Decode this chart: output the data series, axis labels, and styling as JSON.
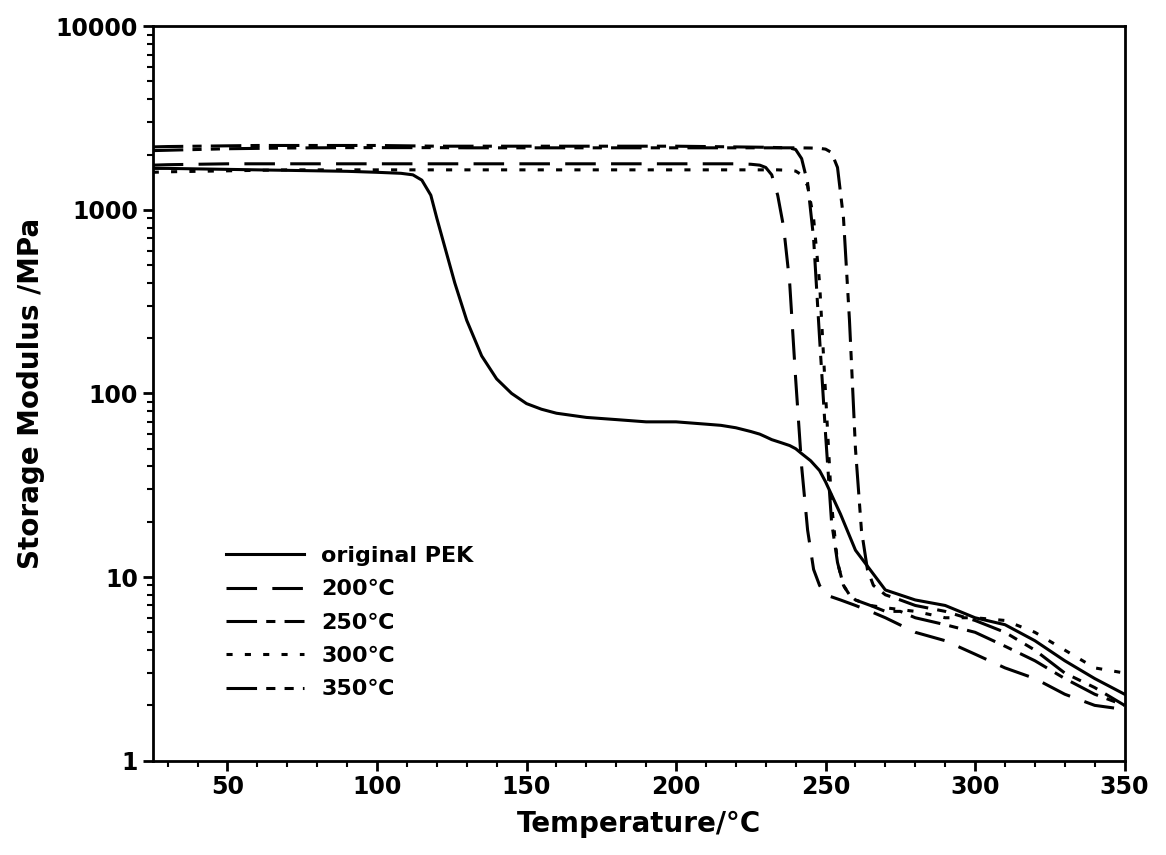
{
  "title": "",
  "xlabel": "Temperature/°C",
  "ylabel": "Storage Modulus /MPa",
  "xlim": [
    25,
    350
  ],
  "ylim_log": [
    1,
    10000
  ],
  "xticks": [
    50,
    100,
    150,
    200,
    250,
    300,
    350
  ],
  "yticks_log": [
    1,
    10,
    100,
    1000,
    10000
  ],
  "legend_labels": [
    "original PEK",
    "200℃",
    "250℃",
    "300℃",
    "350℃"
  ],
  "background_color": "#ffffff",
  "series": {
    "original_PEK": {
      "x": [
        25,
        30,
        40,
        50,
        60,
        70,
        80,
        90,
        100,
        108,
        112,
        115,
        118,
        120,
        123,
        126,
        130,
        135,
        140,
        145,
        150,
        155,
        160,
        170,
        180,
        190,
        200,
        210,
        215,
        220,
        225,
        228,
        230,
        232,
        235,
        238,
        240,
        242,
        245,
        248,
        250,
        255,
        260,
        270,
        280,
        290,
        300,
        310,
        320,
        330,
        340,
        350
      ],
      "y": [
        1680,
        1680,
        1670,
        1660,
        1650,
        1640,
        1630,
        1620,
        1600,
        1580,
        1550,
        1450,
        1200,
        900,
        600,
        400,
        250,
        160,
        120,
        100,
        88,
        82,
        78,
        74,
        72,
        70,
        70,
        68,
        67,
        65,
        62,
        60,
        58,
        56,
        54,
        52,
        50,
        47,
        43,
        38,
        33,
        22,
        14,
        8.5,
        7.5,
        7.0,
        6.0,
        5.5,
        4.5,
        3.5,
        2.8,
        2.3
      ]
    },
    "200C": {
      "x": [
        25,
        30,
        40,
        50,
        60,
        70,
        80,
        90,
        100,
        110,
        120,
        130,
        140,
        150,
        160,
        170,
        180,
        190,
        200,
        210,
        220,
        225,
        228,
        230,
        232,
        234,
        236,
        238,
        240,
        242,
        244,
        246,
        248,
        250,
        255,
        260,
        265,
        270,
        280,
        290,
        300,
        310,
        320,
        330,
        340,
        350
      ],
      "y": [
        1750,
        1760,
        1770,
        1780,
        1780,
        1780,
        1780,
        1780,
        1780,
        1780,
        1780,
        1780,
        1780,
        1780,
        1780,
        1780,
        1780,
        1780,
        1780,
        1780,
        1780,
        1770,
        1750,
        1700,
        1550,
        1200,
        800,
        400,
        120,
        40,
        18,
        11,
        9,
        8,
        7.5,
        7.0,
        6.5,
        6.0,
        5.0,
        4.5,
        3.8,
        3.2,
        2.8,
        2.3,
        2.0,
        1.9
      ]
    },
    "250C": {
      "x": [
        25,
        30,
        40,
        50,
        60,
        70,
        80,
        90,
        100,
        110,
        120,
        130,
        140,
        150,
        160,
        170,
        180,
        190,
        200,
        210,
        220,
        230,
        235,
        238,
        240,
        242,
        244,
        246,
        248,
        250,
        252,
        254,
        256,
        258,
        260,
        265,
        270,
        275,
        280,
        290,
        300,
        310,
        320,
        330,
        340,
        350
      ],
      "y": [
        2200,
        2210,
        2220,
        2230,
        2240,
        2240,
        2240,
        2240,
        2240,
        2230,
        2220,
        2220,
        2220,
        2220,
        2220,
        2220,
        2220,
        2220,
        2220,
        2210,
        2200,
        2190,
        2180,
        2170,
        2130,
        1900,
        1400,
        700,
        200,
        60,
        20,
        12,
        9,
        8.0,
        7.5,
        7.0,
        6.5,
        6.5,
        6.0,
        5.5,
        5.0,
        4.2,
        3.5,
        2.8,
        2.3,
        2.0
      ]
    },
    "300C": {
      "x": [
        25,
        30,
        40,
        50,
        60,
        70,
        80,
        90,
        100,
        110,
        120,
        130,
        140,
        150,
        160,
        170,
        180,
        190,
        200,
        210,
        215,
        220,
        225,
        228,
        230,
        232,
        234,
        236,
        238,
        240,
        242,
        244,
        246,
        248,
        250,
        252,
        254,
        256,
        258,
        260,
        265,
        270,
        280,
        290,
        300,
        310,
        320,
        330,
        340,
        350
      ],
      "y": [
        1600,
        1610,
        1620,
        1630,
        1640,
        1650,
        1650,
        1650,
        1650,
        1650,
        1650,
        1650,
        1650,
        1650,
        1650,
        1650,
        1650,
        1650,
        1650,
        1650,
        1650,
        1650,
        1650,
        1650,
        1650,
        1650,
        1650,
        1645,
        1640,
        1625,
        1550,
        1350,
        900,
        400,
        100,
        25,
        12,
        9,
        8,
        7.5,
        7.0,
        6.8,
        6.5,
        6.0,
        6.0,
        5.8,
        5.0,
        4.0,
        3.2,
        3.0
      ]
    },
    "350C": {
      "x": [
        25,
        30,
        40,
        50,
        60,
        70,
        80,
        90,
        100,
        110,
        120,
        130,
        140,
        150,
        160,
        170,
        180,
        190,
        200,
        210,
        220,
        230,
        240,
        245,
        248,
        250,
        252,
        254,
        256,
        258,
        260,
        262,
        264,
        266,
        268,
        270,
        275,
        280,
        290,
        300,
        310,
        320,
        330,
        340,
        350
      ],
      "y": [
        2100,
        2110,
        2130,
        2150,
        2160,
        2170,
        2175,
        2180,
        2180,
        2180,
        2180,
        2175,
        2175,
        2175,
        2175,
        2175,
        2175,
        2175,
        2175,
        2175,
        2175,
        2175,
        2175,
        2170,
        2160,
        2140,
        2050,
        1700,
        900,
        250,
        50,
        18,
        11,
        9,
        8.5,
        8.0,
        7.5,
        7.0,
        6.5,
        5.8,
        5.0,
        4.0,
        3.0,
        2.5,
        2.0
      ]
    }
  }
}
